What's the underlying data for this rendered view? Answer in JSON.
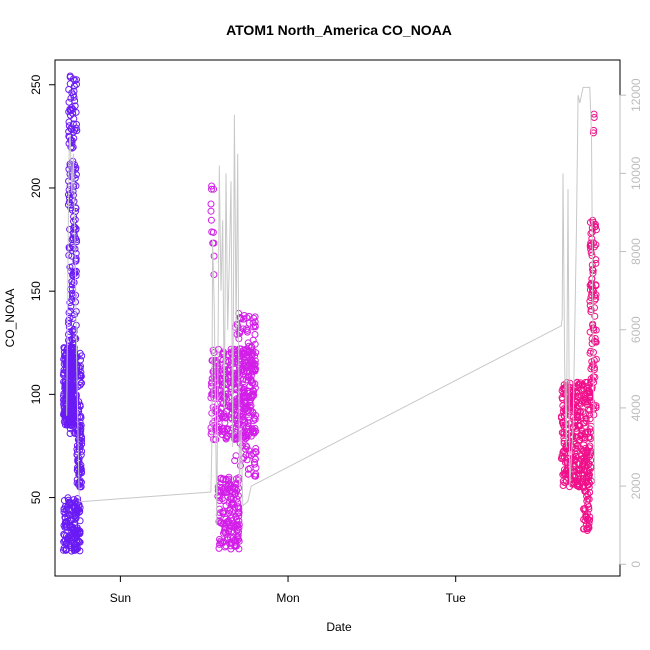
{
  "chart_data": {
    "type": "scatter",
    "title": "ATOM1 North_America CO_NOAA",
    "xlabel": "Date",
    "ylabel": "CO_NOAA",
    "x_ticks": [
      {
        "label": "Sun",
        "value": 0
      },
      {
        "label": "Mon",
        "value": 1
      },
      {
        "label": "Tue",
        "value": 2
      }
    ],
    "xlim": [
      -0.39,
      2.98
    ],
    "ylim": [
      12,
      262
    ],
    "y_ticks": [
      50,
      100,
      150,
      200,
      250
    ],
    "y2lim": [
      -300,
      12900
    ],
    "y2_ticks": [
      0,
      2000,
      4000,
      6000,
      8000,
      10000,
      12000
    ],
    "y2_color": "#bdbdbd",
    "grid": false,
    "series": [
      {
        "kind": "points",
        "color": "#6a1bf5",
        "clusters": [
          {
            "x_range": [
              -0.34,
              -0.27
            ],
            "y_range": [
              85,
              123
            ],
            "n": 260
          },
          {
            "x_range": [
              -0.32,
              -0.23
            ],
            "y_range": [
              80,
              120
            ],
            "n": 120
          },
          {
            "x_range": [
              -0.31,
              -0.26
            ],
            "y_range": [
              120,
              258
            ],
            "n": 170
          },
          {
            "x_range": [
              -0.26,
              -0.23
            ],
            "y_range": [
              55,
              85
            ],
            "n": 60
          },
          {
            "x_range": [
              -0.34,
              -0.24
            ],
            "y_range": [
              24,
              50
            ],
            "n": 150
          }
        ]
      },
      {
        "kind": "points",
        "color": "#d21fe8",
        "clusters": [
          {
            "x_range": [
              0.54,
              0.81
            ],
            "y_range": [
              78,
              122
            ],
            "n": 340
          },
          {
            "x_range": [
              0.54,
              0.56
            ],
            "y_range": [
              150,
              203
            ],
            "n": 12
          },
          {
            "x_range": [
              0.58,
              0.71
            ],
            "y_range": [
              25,
              60
            ],
            "n": 160
          },
          {
            "x_range": [
              0.68,
              0.81
            ],
            "y_range": [
              60,
              140
            ],
            "n": 150
          }
        ]
      },
      {
        "kind": "points",
        "color": "#f0108a",
        "clusters": [
          {
            "x_range": [
              2.63,
              2.81
            ],
            "y_range": [
              55,
              106
            ],
            "n": 320
          },
          {
            "x_range": [
              2.76,
              2.8
            ],
            "y_range": [
              33,
              70
            ],
            "n": 60
          },
          {
            "x_range": [
              2.8,
              2.84
            ],
            "y_range": [
              90,
              186
            ],
            "n": 90
          },
          {
            "x_range": [
              2.81,
              2.83
            ],
            "y_range": [
              225,
              241
            ],
            "n": 4
          }
        ]
      },
      {
        "kind": "line",
        "axis": "right",
        "color": "#c8c8c8",
        "description_free": true,
        "points": [
          [
            -0.32,
            3800
          ],
          [
            -0.31,
            9000
          ],
          [
            -0.305,
            10800
          ],
          [
            -0.3,
            11000
          ],
          [
            -0.29,
            9500
          ],
          [
            -0.28,
            10500
          ],
          [
            -0.27,
            8000
          ],
          [
            -0.26,
            5000
          ],
          [
            -0.25,
            2600
          ],
          [
            -0.245,
            1600
          ],
          [
            -0.24,
            1600
          ],
          [
            0.54,
            1850
          ],
          [
            0.545,
            3000
          ],
          [
            0.55,
            8300
          ],
          [
            0.56,
            6500
          ],
          [
            0.575,
            1000
          ],
          [
            0.59,
            10200
          ],
          [
            0.6,
            7000
          ],
          [
            0.61,
            8800
          ],
          [
            0.62,
            4000
          ],
          [
            0.63,
            10000
          ],
          [
            0.64,
            6000
          ],
          [
            0.65,
            7800
          ],
          [
            0.66,
            9800
          ],
          [
            0.67,
            3000
          ],
          [
            0.68,
            11500
          ],
          [
            0.69,
            6000
          ],
          [
            0.7,
            10500
          ],
          [
            0.71,
            2000
          ],
          [
            0.72,
            3500
          ],
          [
            0.73,
            1500
          ],
          [
            0.76,
            1600
          ],
          [
            0.78,
            2000
          ],
          [
            2.63,
            6100
          ],
          [
            2.635,
            6300
          ],
          [
            2.64,
            10000
          ],
          [
            2.65,
            5000
          ],
          [
            2.66,
            3000
          ],
          [
            2.67,
            9600
          ],
          [
            2.68,
            2000
          ],
          [
            2.7,
            3500
          ],
          [
            2.72,
            8500
          ],
          [
            2.73,
            12000
          ],
          [
            2.74,
            11800
          ],
          [
            2.76,
            12200
          ],
          [
            2.8,
            12200
          ],
          [
            2.81,
            11000
          ],
          [
            2.82,
            5000
          ],
          [
            2.83,
            2000
          ]
        ]
      }
    ]
  }
}
